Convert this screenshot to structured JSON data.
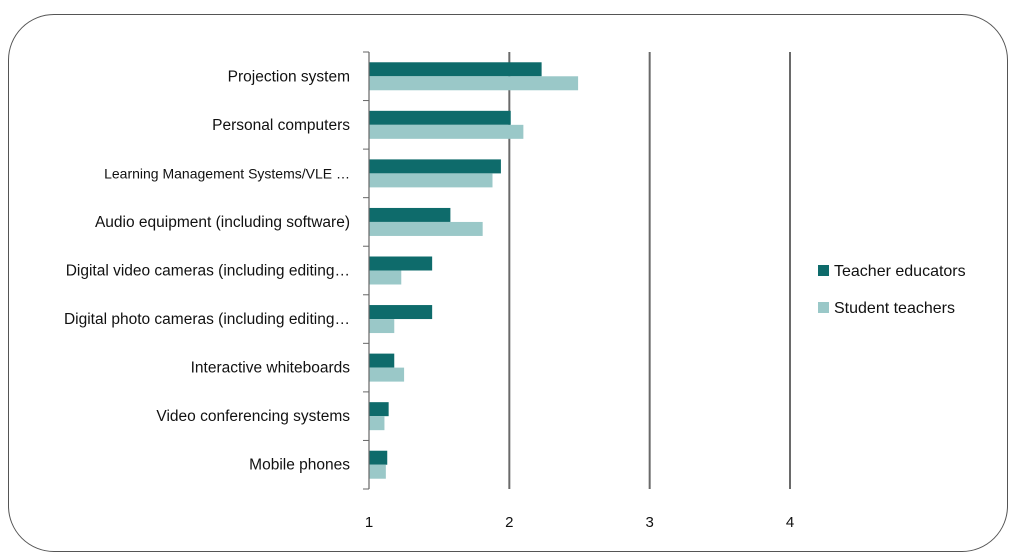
{
  "colors": {
    "series_1": "#0e6b6b",
    "series_2": "#9ac8c8",
    "grid": "#6a6a6a",
    "axis": "#666666"
  },
  "chart_data": {
    "type": "bar",
    "orientation": "horizontal",
    "categories": [
      "Projection system",
      "Personal computers",
      "Learning Management Systems/VLE  …",
      "Audio equipment (including software)",
      "Digital video cameras (including editing…",
      "Digital photo cameras (including editing…",
      "Interactive whiteboards",
      "Video conferencing systems",
      "Mobile phones"
    ],
    "series": [
      {
        "name": "Teacher educators",
        "values": [
          2.23,
          2.01,
          1.94,
          1.58,
          1.45,
          1.45,
          1.18,
          1.14,
          1.13
        ]
      },
      {
        "name": "Student teachers",
        "values": [
          2.49,
          2.1,
          1.88,
          1.81,
          1.23,
          1.18,
          1.25,
          1.11,
          1.12
        ]
      }
    ],
    "xlim": [
      1,
      4
    ],
    "xticks": [
      "1",
      "2",
      "3",
      "4"
    ],
    "grid": true,
    "legend_position": "right",
    "title": "",
    "xlabel": "",
    "ylabel": ""
  }
}
